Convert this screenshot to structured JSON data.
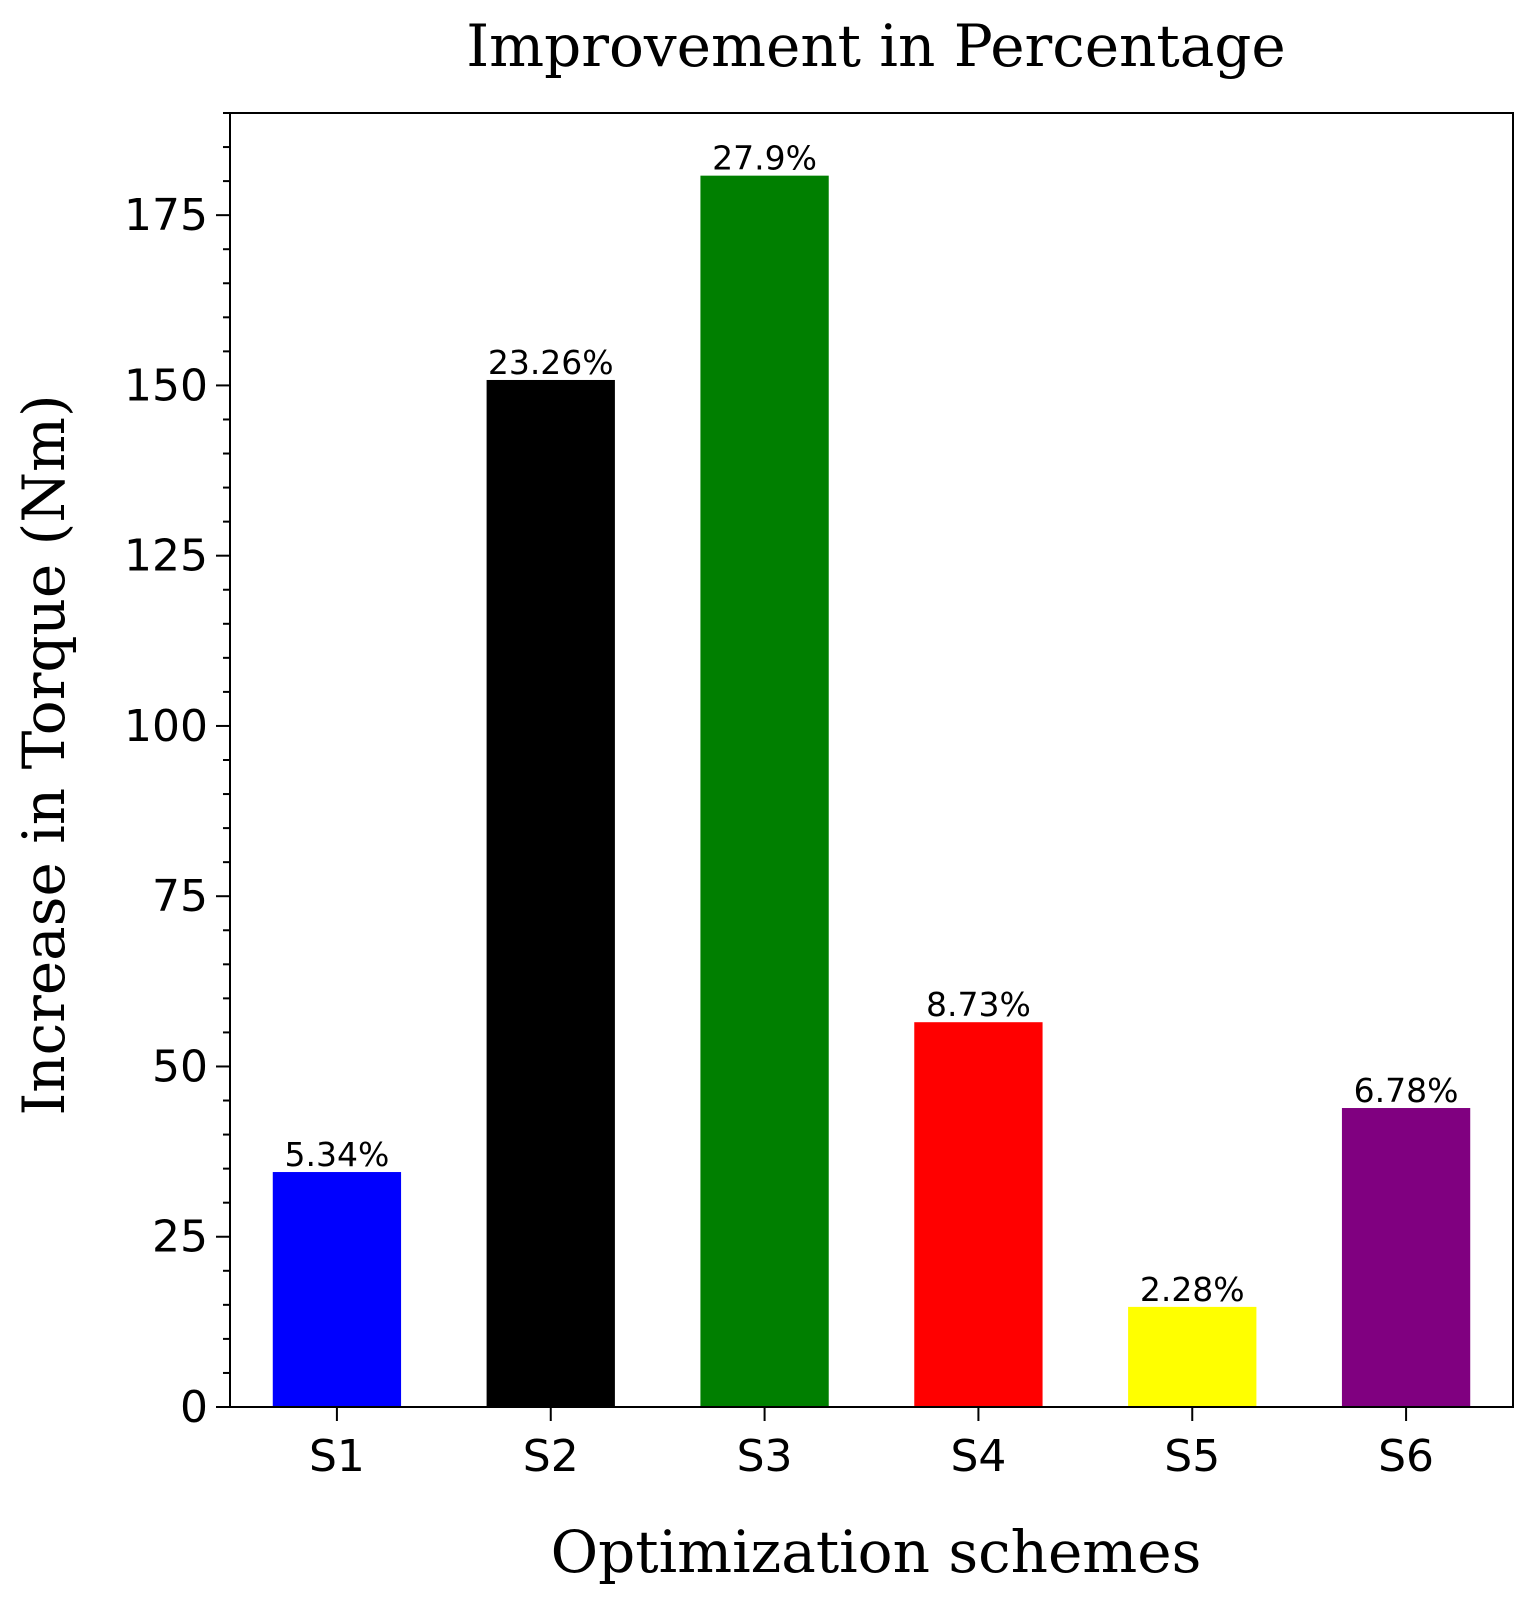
{
  "chart_data": {
    "type": "bar",
    "title": "Improvement in Percentage",
    "xlabel": "Optimization schemes",
    "ylabel": "Increase in Torque (Nm)",
    "categories": [
      "S1",
      "S2",
      "S3",
      "S4",
      "S5",
      "S6"
    ],
    "values": [
      34.5,
      150.8,
      180.8,
      56.5,
      14.7,
      43.9
    ],
    "data_labels": [
      "5.34%",
      "23.26%",
      "27.9%",
      "8.73%",
      "2.28%",
      "6.78%"
    ],
    "colors": [
      "#0000ff",
      "#000000",
      "#007f00",
      "#ff0000",
      "#ffff00",
      "#800080"
    ],
    "ylim": [
      0,
      190
    ],
    "yticks": [
      0,
      25,
      50,
      75,
      100,
      125,
      150,
      175
    ],
    "ytick_labels": [
      "0",
      "25",
      "50",
      "75",
      "100",
      "125",
      "150",
      "175"
    ],
    "y_minor_step": 5,
    "grid": false
  }
}
